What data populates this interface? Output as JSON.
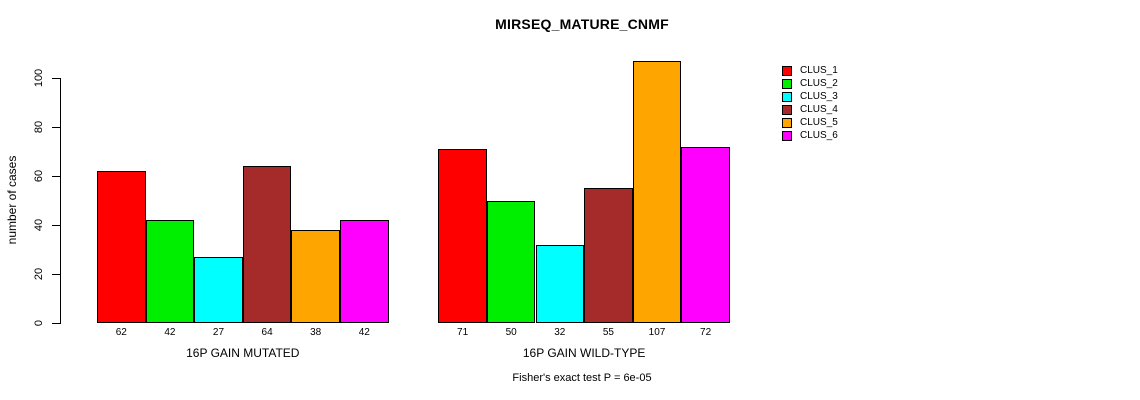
{
  "chart_data": {
    "type": "bar",
    "title": "MIRSEQ_MATURE_CNMF",
    "ylabel": "number of cases",
    "ylim": [
      0,
      100
    ],
    "yticks": [
      0,
      20,
      40,
      60,
      80,
      100
    ],
    "grid": false,
    "legend_position": "right",
    "categories": [
      "16P GAIN MUTATED",
      "16P GAIN WILD-TYPE"
    ],
    "groups": [
      {
        "label": "16P GAIN MUTATED",
        "values": [
          62,
          42,
          27,
          64,
          38,
          42
        ]
      },
      {
        "label": "16P GAIN WILD-TYPE",
        "values": [
          71,
          50,
          32,
          55,
          107,
          72
        ]
      }
    ],
    "series": [
      {
        "name": "CLUS_1",
        "color": "#FF0000"
      },
      {
        "name": "CLUS_2",
        "color": "#00EE00"
      },
      {
        "name": "CLUS_3",
        "color": "#00FFFF"
      },
      {
        "name": "CLUS_4",
        "color": "#A52A2A"
      },
      {
        "name": "CLUS_5",
        "color": "#FFA500"
      },
      {
        "name": "CLUS_6",
        "color": "#FF00FF"
      }
    ],
    "footer": "Fisher's exact test P = 6e-05"
  }
}
